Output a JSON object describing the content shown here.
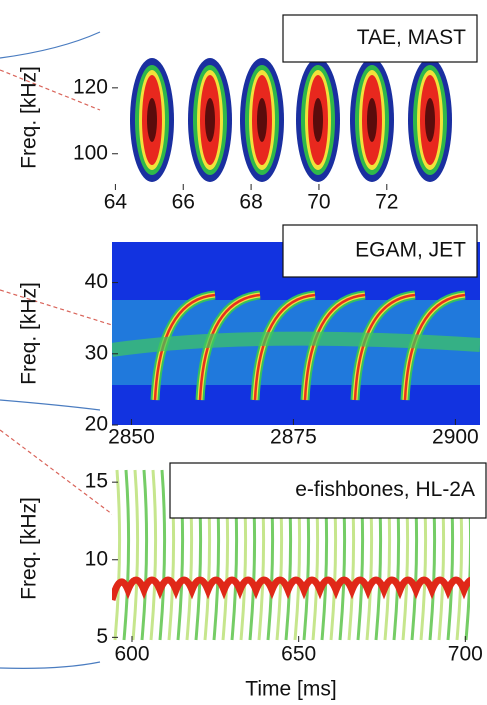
{
  "chart_data": [
    {
      "type": "spectrogram",
      "annotation": "TAE, MAST",
      "y_label": "Freq. [kHz]",
      "xlim": [
        63.9,
        74.6
      ],
      "xticks": [
        64,
        66,
        68,
        70,
        72
      ],
      "ylim": [
        89,
        133
      ],
      "yticks": [
        100,
        120
      ]
    },
    {
      "type": "spectrogram",
      "annotation": "EGAM, JET",
      "y_label": "Freq. [kHz]",
      "xlim": [
        2847,
        2903.8
      ],
      "xticks": [
        2850,
        2875,
        2900
      ],
      "ylim": [
        20,
        45.7
      ],
      "yticks": [
        20,
        30,
        40
      ]
    },
    {
      "type": "spectrogram",
      "annotation": "e-fishbones, HL-2A",
      "y_label": "Freq. [kHz]",
      "x_label": "Time [ms]",
      "xlim": [
        594,
        701.4
      ],
      "xticks": [
        600,
        650,
        700
      ],
      "ylim": [
        4.7,
        16.75
      ],
      "yticks": [
        5,
        10,
        15
      ]
    }
  ]
}
